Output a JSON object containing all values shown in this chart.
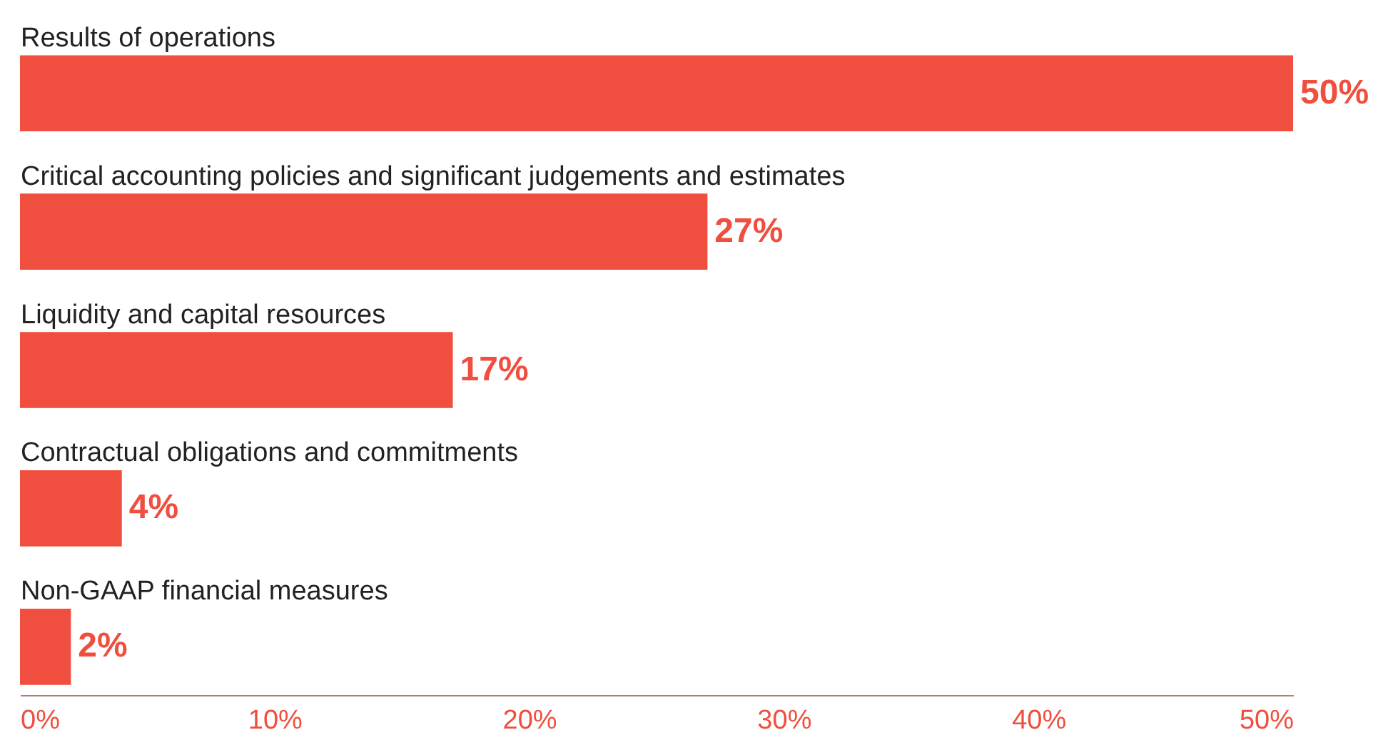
{
  "chart_data": {
    "type": "bar",
    "orientation": "horizontal",
    "categories": [
      "Results of operations",
      "Critical accounting policies and significant judgements and estimates",
      "Liquidity and capital resources",
      "Contractual obligations and commitments",
      "Non-GAAP financial measures"
    ],
    "values": [
      50,
      27,
      17,
      4,
      2
    ],
    "value_labels": [
      "50%",
      "27%",
      "17%",
      "4%",
      "2%"
    ],
    "color": "#f04e3e",
    "xlim": [
      0,
      50
    ],
    "xticks": [
      {
        "value": 0,
        "label": "0%"
      },
      {
        "value": 10,
        "label": "10%"
      },
      {
        "value": 20,
        "label": "20%"
      },
      {
        "value": 30,
        "label": "30%"
      },
      {
        "value": 40,
        "label": "40%"
      },
      {
        "value": 50,
        "label": "50%"
      }
    ],
    "grid": false
  }
}
